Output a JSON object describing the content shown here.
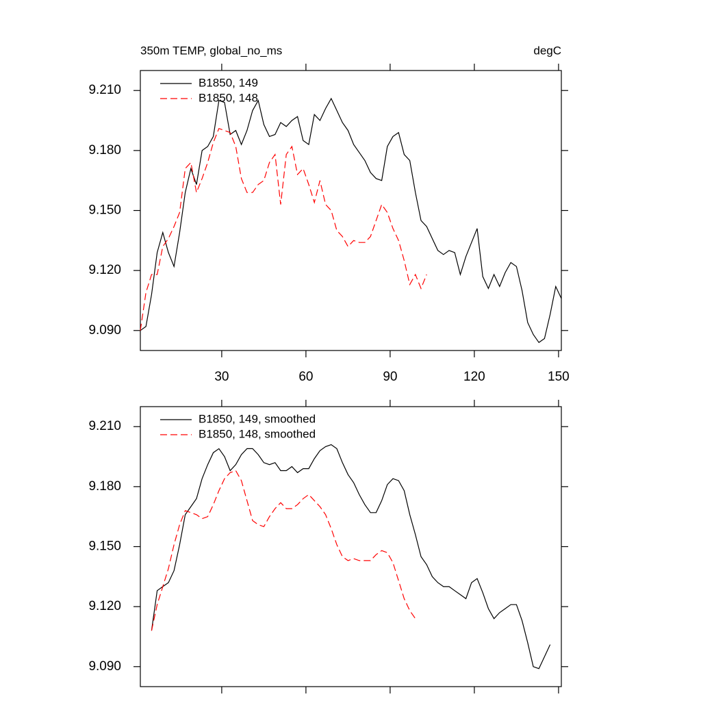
{
  "chart_data": [
    {
      "type": "line",
      "title": "350m TEMP, global_no_ms",
      "unit_label": "degC",
      "x": [
        1,
        3,
        5,
        7,
        9,
        11,
        13,
        15,
        17,
        19,
        21,
        23,
        25,
        27,
        29,
        31,
        33,
        35,
        37,
        39,
        41,
        43,
        45,
        47,
        49,
        51,
        53,
        55,
        57,
        59,
        61,
        63,
        65,
        67,
        69,
        71,
        73,
        75,
        77,
        79,
        81,
        83,
        85,
        87,
        89,
        91,
        93,
        95,
        97,
        99,
        101,
        103,
        105,
        107,
        109,
        111,
        113,
        115,
        117,
        119,
        121,
        123,
        125,
        127,
        129,
        131,
        133,
        135,
        137,
        139,
        141,
        143,
        145,
        147,
        149,
        151
      ],
      "series": [
        {
          "name": "B1850, 149",
          "color": "#000000",
          "dash": false,
          "values": [
            9.09,
            9.092,
            9.108,
            9.129,
            9.139,
            9.129,
            9.122,
            9.139,
            9.159,
            9.171,
            9.163,
            9.18,
            9.182,
            9.187,
            9.205,
            9.204,
            9.188,
            9.19,
            9.183,
            9.19,
            9.2,
            9.205,
            9.193,
            9.187,
            9.188,
            9.194,
            9.192,
            9.195,
            9.197,
            9.185,
            9.183,
            9.198,
            9.195,
            9.201,
            9.206,
            9.2,
            9.194,
            9.19,
            9.183,
            9.179,
            9.175,
            9.169,
            9.166,
            9.165,
            9.182,
            9.187,
            9.189,
            9.178,
            9.175,
            9.159,
            9.145,
            9.142,
            9.136,
            9.13,
            9.128,
            9.13,
            9.129,
            9.118,
            9.127,
            9.134,
            9.141,
            9.117,
            9.111,
            9.118,
            9.112,
            9.119,
            9.124,
            9.122,
            9.11,
            9.094,
            9.088,
            9.084,
            9.086,
            9.098,
            9.112,
            9.106
          ]
        },
        {
          "name": "B1850, 148",
          "color": "#ff0000",
          "dash": true,
          "values": [
            9.09,
            9.109,
            9.118,
            9.118,
            9.132,
            9.136,
            9.142,
            9.149,
            9.171,
            9.174,
            9.159,
            9.166,
            9.174,
            9.184,
            9.191,
            9.19,
            9.189,
            9.182,
            9.166,
            9.159,
            9.159,
            9.163,
            9.165,
            9.174,
            9.178,
            9.153,
            9.178,
            9.182,
            9.168,
            9.171,
            9.163,
            9.154,
            9.165,
            9.153,
            9.15,
            9.14,
            9.137,
            9.132,
            9.135,
            9.134,
            9.134,
            9.137,
            9.145,
            9.153,
            9.149,
            9.141,
            9.135,
            9.125,
            9.113,
            9.118,
            9.111,
            9.118,
            null,
            null,
            null,
            null,
            null,
            null,
            null,
            null,
            null,
            null,
            null,
            null,
            null,
            null,
            null,
            null,
            null,
            null,
            null,
            null,
            null,
            null,
            null,
            null
          ]
        }
      ],
      "xlim": [
        1,
        151
      ],
      "xticks": [
        30,
        60,
        90,
        120,
        150
      ],
      "ylim": [
        9.08,
        9.22
      ],
      "yticks": [
        {
          "value": 9.09,
          "label": "9.090"
        },
        {
          "value": 9.12,
          "label": "9.120"
        },
        {
          "value": 9.15,
          "label": "9.150"
        },
        {
          "value": 9.18,
          "label": "9.180"
        },
        {
          "value": 9.21,
          "label": "9.210"
        }
      ],
      "show_xtick_labels": true
    },
    {
      "type": "line",
      "x": [
        5,
        7,
        9,
        11,
        13,
        15,
        17,
        19,
        21,
        23,
        25,
        27,
        29,
        31,
        33,
        35,
        37,
        39,
        41,
        43,
        45,
        47,
        49,
        51,
        53,
        55,
        57,
        59,
        61,
        63,
        65,
        67,
        69,
        71,
        73,
        75,
        77,
        79,
        81,
        83,
        85,
        87,
        89,
        91,
        93,
        95,
        97,
        99,
        101,
        103,
        105,
        107,
        109,
        111,
        113,
        115,
        117,
        119,
        121,
        123,
        125,
        127,
        129,
        131,
        133,
        135,
        137,
        139,
        141,
        143,
        145,
        147
      ],
      "series": [
        {
          "name": "B1850, 149, smoothed",
          "color": "#000000",
          "dash": false,
          "values": [
            9.108,
            9.128,
            9.13,
            9.132,
            9.138,
            9.151,
            9.166,
            9.17,
            9.174,
            9.184,
            9.191,
            9.197,
            9.199,
            9.195,
            9.188,
            9.191,
            9.196,
            9.199,
            9.199,
            9.196,
            9.192,
            9.191,
            9.192,
            9.188,
            9.188,
            9.19,
            9.187,
            9.189,
            9.189,
            9.194,
            9.198,
            9.2,
            9.201,
            9.199,
            9.192,
            9.186,
            9.182,
            9.176,
            9.171,
            9.167,
            9.167,
            9.173,
            9.181,
            9.184,
            9.183,
            9.178,
            9.166,
            9.156,
            9.145,
            9.141,
            9.135,
            9.132,
            9.13,
            9.13,
            9.128,
            9.126,
            9.124,
            9.132,
            9.134,
            9.127,
            9.119,
            9.114,
            9.117,
            9.119,
            9.121,
            9.121,
            9.113,
            9.102,
            9.09,
            9.089,
            9.095,
            9.101
          ]
        },
        {
          "name": "B1850, 148, smoothed",
          "color": "#ff0000",
          "dash": true,
          "values": [
            9.108,
            9.121,
            9.13,
            9.139,
            9.151,
            9.161,
            9.168,
            9.167,
            9.166,
            9.164,
            9.165,
            9.171,
            9.178,
            9.184,
            9.187,
            9.188,
            9.183,
            9.173,
            9.163,
            9.161,
            9.16,
            9.165,
            9.169,
            9.172,
            9.169,
            9.169,
            9.171,
            9.174,
            9.176,
            9.173,
            9.17,
            9.166,
            9.159,
            9.151,
            9.145,
            9.143,
            9.144,
            9.143,
            9.143,
            9.143,
            9.146,
            9.148,
            9.147,
            9.142,
            9.133,
            9.124,
            9.118,
            9.114,
            null,
            null,
            null,
            null,
            null,
            null,
            null,
            null,
            null,
            null,
            null,
            null,
            null,
            null,
            null,
            null,
            null,
            null,
            null,
            null,
            null,
            null,
            null,
            null
          ]
        }
      ],
      "xlim": [
        1,
        151
      ],
      "xticks": [
        30,
        60,
        90,
        120,
        150
      ],
      "ylim": [
        9.08,
        9.22
      ],
      "yticks": [
        {
          "value": 9.09,
          "label": "9.090"
        },
        {
          "value": 9.12,
          "label": "9.120"
        },
        {
          "value": 9.15,
          "label": "9.150"
        },
        {
          "value": 9.18,
          "label": "9.180"
        },
        {
          "value": 9.21,
          "label": "9.210"
        }
      ],
      "show_xtick_labels": false
    }
  ]
}
